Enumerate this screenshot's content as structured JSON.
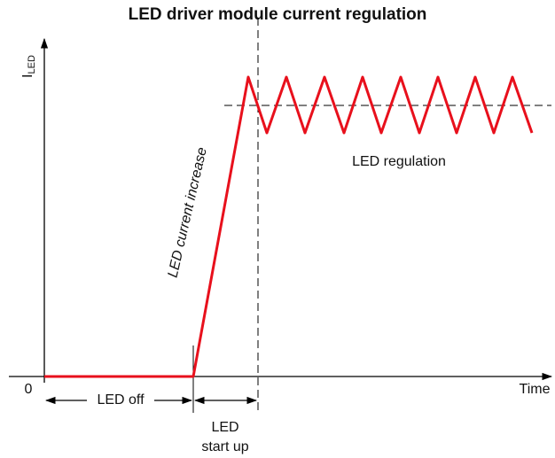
{
  "title": "LED driver module current regulation",
  "axes": {
    "y_label": {
      "main": "I",
      "subscript": "LED"
    },
    "x_label": "Time",
    "origin": "0"
  },
  "annotations": {
    "ramp": "LED current increase",
    "regulation": "LED regulation",
    "off": "LED off",
    "start_up": [
      "LED",
      "start up"
    ]
  }
}
